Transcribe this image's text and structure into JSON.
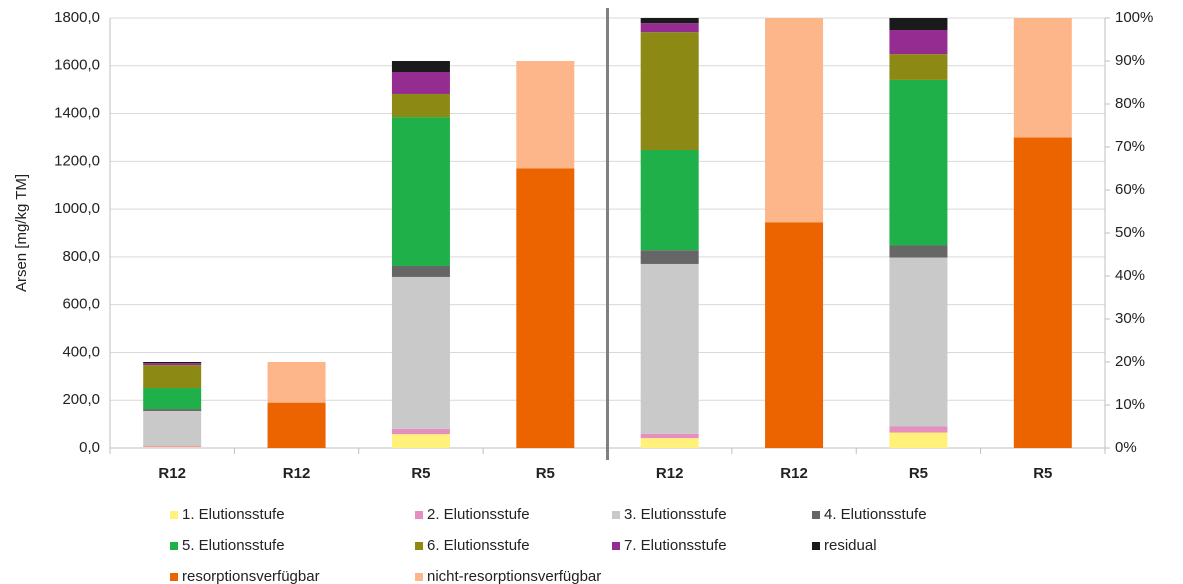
{
  "chart_data": [
    {
      "type": "stacked-bar",
      "ylabel": "Arsen [mg/kg TM]",
      "categories": [
        "R12",
        "R12",
        "R5",
        "R5"
      ],
      "ylim": [
        0,
        1800
      ],
      "yticks": [
        {
          "value": 0,
          "label": "0,0"
        },
        {
          "value": 200,
          "label": "200,0"
        },
        {
          "value": 400,
          "label": "400,0"
        },
        {
          "value": 600,
          "label": "600,0"
        },
        {
          "value": 800,
          "label": "800,0"
        },
        {
          "value": 1000,
          "label": "1000,0"
        },
        {
          "value": 1200,
          "label": "1200,0"
        },
        {
          "value": 1400,
          "label": "1400,0"
        },
        {
          "value": 1600,
          "label": "1600,0"
        },
        {
          "value": 1800,
          "label": "1800,0"
        }
      ],
      "grid": true,
      "series": [
        {
          "name": "1. Elutionsstufe",
          "color": "#fff17a",
          "values": [
            3,
            null,
            58,
            null
          ]
        },
        {
          "name": "2. Elutionsstufe",
          "color": "#e58fc0",
          "values": [
            5,
            null,
            22,
            null
          ]
        },
        {
          "name": "3. Elutionsstufe",
          "color": "#c9c9c9",
          "values": [
            147,
            null,
            636,
            null
          ]
        },
        {
          "name": "4. Elutionsstufe",
          "color": "#666666",
          "values": [
            8,
            null,
            46,
            null
          ]
        },
        {
          "name": "5. Elutionsstufe",
          "color": "#1fb04a",
          "values": [
            88,
            null,
            623,
            null
          ]
        },
        {
          "name": "6. Elutionsstufe",
          "color": "#8c8a14",
          "values": [
            96,
            null,
            97,
            null
          ]
        },
        {
          "name": "7. Elutionsstufe",
          "color": "#952c91",
          "values": [
            8,
            null,
            92,
            null
          ]
        },
        {
          "name": "residual",
          "color": "#1a1a1a",
          "values": [
            5,
            null,
            46,
            null
          ]
        },
        {
          "name": "resorptionsverfügbar",
          "color": "#eb6400",
          "values": [
            null,
            190,
            null,
            1170
          ]
        },
        {
          "name": "nicht-resorptionsverfügbar",
          "color": "#fdb68a",
          "values": [
            null,
            170,
            null,
            450
          ]
        }
      ]
    },
    {
      "type": "stacked-bar",
      "categories": [
        "R12",
        "R12",
        "R5",
        "R5"
      ],
      "y2lim": [
        0,
        100
      ],
      "y2ticks": [
        {
          "value": 0,
          "label": "0%"
        },
        {
          "value": 10,
          "label": "10%"
        },
        {
          "value": 20,
          "label": "20%"
        },
        {
          "value": 30,
          "label": "30%"
        },
        {
          "value": 40,
          "label": "40%"
        },
        {
          "value": 50,
          "label": "50%"
        },
        {
          "value": 60,
          "label": "60%"
        },
        {
          "value": 70,
          "label": "70%"
        },
        {
          "value": 80,
          "label": "80%"
        },
        {
          "value": 90,
          "label": "90%"
        },
        {
          "value": 100,
          "label": "100%"
        }
      ],
      "series": [
        {
          "axis": "y2",
          "color": "#fff17a",
          "values": [
            2.3,
            null,
            3.6,
            null
          ]
        },
        {
          "axis": "y2",
          "color": "#e58fc0",
          "values": [
            1,
            null,
            1.4,
            null
          ]
        },
        {
          "axis": "y2",
          "color": "#c9c9c9",
          "values": [
            39.5,
            null,
            39.3,
            null
          ]
        },
        {
          "axis": "y2",
          "color": "#666666",
          "values": [
            3.2,
            null,
            2.8,
            null
          ]
        },
        {
          "axis": "y2",
          "color": "#1fb04a",
          "values": [
            23.3,
            null,
            38.5,
            null
          ]
        },
        {
          "axis": "y2",
          "color": "#8c8a14",
          "values": [
            27.4,
            null,
            6,
            null
          ]
        },
        {
          "axis": "y2",
          "color": "#952c91",
          "values": [
            2.1,
            null,
            5.6,
            null
          ]
        },
        {
          "axis": "y2",
          "color": "#1a1a1a",
          "values": [
            1.2,
            null,
            2.8,
            null
          ]
        },
        {
          "axis": "y2",
          "color": "#eb6400",
          "values": [
            null,
            52.5,
            null,
            72.2
          ]
        },
        {
          "axis": "y2",
          "color": "#fdb68a",
          "values": [
            null,
            47.5,
            null,
            27.8
          ]
        }
      ]
    }
  ]
}
